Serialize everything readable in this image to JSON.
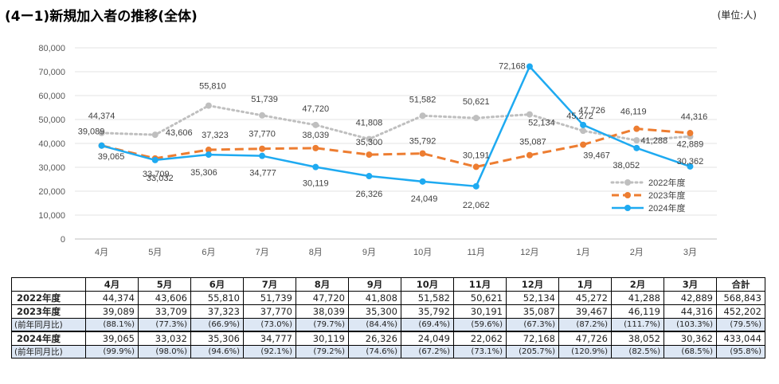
{
  "title": "(4ー1)新規加入者の推移(全体)",
  "unit": "(単位:人)",
  "chart_data": {
    "type": "line",
    "categories": [
      "4月",
      "5月",
      "6月",
      "7月",
      "8月",
      "9月",
      "10月",
      "11月",
      "12月",
      "1月",
      "2月",
      "3月"
    ],
    "ylim": [
      0,
      80000
    ],
    "yticks": [
      "0",
      "10,000",
      "20,000",
      "30,000",
      "40,000",
      "50,000",
      "60,000",
      "70,000",
      "80,000"
    ],
    "grid": true,
    "legend_position": "right",
    "series": [
      {
        "name": "2022年度",
        "color": "#bfbfbf",
        "style": "dotted",
        "values": [
          44374,
          43606,
          55810,
          51739,
          47720,
          41808,
          51582,
          50621,
          52134,
          45272,
          41288,
          42889
        ],
        "labels": [
          "44,374",
          "43,606",
          "55,810",
          "51,739",
          "47,720",
          "41,808",
          "51,582",
          "50,621",
          "52,134",
          "45,272",
          "41,288",
          "42,889"
        ]
      },
      {
        "name": "2023年度",
        "color": "#ed7d31",
        "style": "dashed",
        "values": [
          39089,
          33709,
          37323,
          37770,
          38039,
          35300,
          35792,
          30191,
          35087,
          39467,
          46119,
          44316
        ],
        "labels": [
          "39,089",
          "33,709",
          "37,323",
          "37,770",
          "38,039",
          "35,300",
          "35,792",
          "30,191",
          "35,087",
          "39,467",
          "46,119",
          "44,316"
        ]
      },
      {
        "name": "2024年度",
        "color": "#1eaaf1",
        "style": "solid",
        "values": [
          39065,
          33032,
          35306,
          34777,
          30119,
          26326,
          24049,
          22062,
          72168,
          47726,
          38052,
          30362
        ],
        "labels": [
          "39,065",
          "33,032",
          "35,306",
          "34,777",
          "30,119",
          "26,326",
          "24,049",
          "22,062",
          "72,168",
          "47,726",
          "38,052",
          "30,362"
        ]
      }
    ]
  },
  "table": {
    "headers": [
      "",
      "4月",
      "5月",
      "6月",
      "7月",
      "8月",
      "9月",
      "10月",
      "11月",
      "12月",
      "1月",
      "2月",
      "3月",
      "合計"
    ],
    "rows": [
      {
        "label": "2022年度",
        "kind": "main",
        "cells": [
          "44,374",
          "43,606",
          "55,810",
          "51,739",
          "47,720",
          "41,808",
          "51,582",
          "50,621",
          "52,134",
          "45,272",
          "41,288",
          "42,889",
          "568,843"
        ]
      },
      {
        "label": "2023年度",
        "kind": "main",
        "cells": [
          "39,089",
          "33,709",
          "37,323",
          "37,770",
          "38,039",
          "35,300",
          "35,792",
          "30,191",
          "35,087",
          "39,467",
          "46,119",
          "44,316",
          "452,202"
        ]
      },
      {
        "label": "(前年同月比)",
        "kind": "sub",
        "cells": [
          "(88.1%)",
          "(77.3%)",
          "(66.9%)",
          "(73.0%)",
          "(79.7%)",
          "(84.4%)",
          "(69.4%)",
          "(59.6%)",
          "(67.3%)",
          "(87.2%)",
          "(111.7%)",
          "(103.3%)",
          "(79.5%)"
        ]
      },
      {
        "label": "2024年度",
        "kind": "main",
        "cells": [
          "39,065",
          "33,032",
          "35,306",
          "34,777",
          "30,119",
          "26,326",
          "24,049",
          "22,062",
          "72,168",
          "47,726",
          "38,052",
          "30,362",
          "433,044"
        ]
      },
      {
        "label": "(前年同月比)",
        "kind": "sub",
        "cells": [
          "(99.9%)",
          "(98.0%)",
          "(94.6%)",
          "(92.1%)",
          "(79.2%)",
          "(74.6%)",
          "(67.2%)",
          "(73.1%)",
          "(205.7%)",
          "(120.9%)",
          "(82.5%)",
          "(68.5%)",
          "(95.8%)"
        ]
      }
    ]
  }
}
